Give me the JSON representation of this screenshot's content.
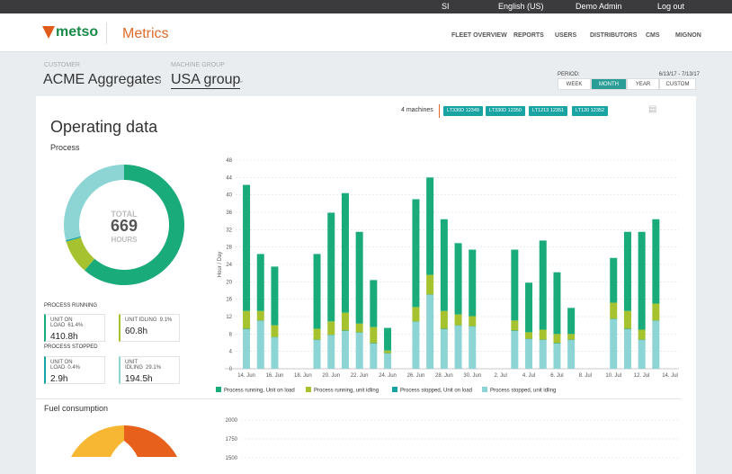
{
  "topbar": {
    "items": [
      "SI",
      "English (US)",
      "Demo Admin",
      "Log out"
    ]
  },
  "nav": {
    "logo": "metso",
    "app": "Metrics",
    "links": [
      "FLEET OVERVIEW",
      "REPORTS",
      "USERS",
      "DISTRIBUTORS",
      "CMS",
      "MIGNON"
    ]
  },
  "breadcrumb": {
    "customer_label": "CUSTOMER",
    "customer": "ACME Aggregates",
    "group_label": "MACHINE GROUP",
    "group": "USA group"
  },
  "period": {
    "label": "PERIOD:",
    "range": "6/13/17 - 7/13/17",
    "options": [
      "WEEK",
      "MONTH",
      "YEAR",
      "CUSTOM"
    ],
    "selected": 1
  },
  "machines": {
    "count": "4 machines",
    "list": [
      "LT330D 12349",
      "LT330D 12350",
      "LT1213 12351",
      "LT120 12352"
    ]
  },
  "section_title": "Operating data",
  "process": {
    "title": "Process",
    "donut": {
      "type": "pie",
      "center_label": "TOTAL",
      "center_value": "669",
      "center_unit": "HOURS",
      "categories": [
        "UNIT ON LOAD",
        "UNIT IDLING",
        "UNIT ON LOAD",
        "UNIT IDLING"
      ],
      "values": [
        61.4,
        9.1,
        0.4,
        29.1
      ],
      "value_labels": [
        "61.4%",
        "9.1%",
        "0.4%",
        "29.1%"
      ],
      "hours": [
        "410.8h",
        "60.8h",
        "2.9h",
        "194.5h"
      ],
      "colors": [
        "#1aab7b",
        "#a6c22e",
        "#17a3a3",
        "#8dd4d4"
      ]
    },
    "groups": [
      "PROCESS RUNNING",
      "PROCESS STOPPED"
    ],
    "bars": {
      "type": "bar",
      "stacked": true,
      "y_label": "Hour / Day",
      "categories": [
        null,
        "14. Jun",
        null,
        "16. Jun",
        null,
        "18. Jun",
        null,
        "20. Jun",
        null,
        "22. Jun",
        null,
        "24. Jun",
        null,
        "26. Jun",
        null,
        "28. Jun",
        null,
        "30. Jun",
        null,
        "2. Jul",
        null,
        "4. Jul",
        null,
        "6. Jul",
        null,
        "8. Jul",
        null,
        "10. Jul",
        null,
        "12. Jul",
        null,
        "14. Jul"
      ],
      "ylim": [
        0,
        48
      ],
      "yticks": [
        0,
        4,
        8,
        12,
        16,
        20,
        24,
        28,
        32,
        36,
        40,
        44,
        48
      ],
      "grid": true,
      "series": [
        {
          "name": "Process running, Unit on load",
          "color": "#1aab7b",
          "values": [
            null,
            29,
            13.1,
            13.5,
            null,
            null,
            17.2,
            25,
            27.5,
            21.1,
            10.8,
            5.2,
            null,
            24.8,
            22.4,
            21.1,
            16.4,
            15.3,
            null,
            null,
            16.3,
            11.4,
            20.5,
            14.2,
            6.0,
            null,
            null,
            10.3,
            18.2,
            22.5,
            19.4,
            null
          ]
        },
        {
          "name": "Process running, unit idling",
          "color": "#a6c22e",
          "values": [
            null,
            4.1,
            2.2,
            2.7,
            null,
            null,
            2.5,
            3.1,
            4.1,
            2,
            3.7,
            0.6,
            null,
            3.3,
            4.5,
            4.1,
            2.5,
            2.3,
            null,
            null,
            2.3,
            1.5,
            2.3,
            2.1,
            1.3,
            null,
            null,
            3.7,
            4.1,
            2.3,
            3.9,
            null
          ]
        },
        {
          "name": "Process stopped, Unit on load",
          "color": "#17a3a3",
          "values": [
            null,
            0.1,
            0.1,
            0.1,
            null,
            null,
            0.1,
            0.1,
            0.1,
            0.1,
            0.1,
            0.1,
            null,
            0.1,
            0.1,
            0.1,
            0.1,
            0.1,
            null,
            null,
            0.1,
            0.1,
            0.1,
            0.1,
            0.1,
            null,
            null,
            0.1,
            0.1,
            0.1,
            0.1,
            null
          ]
        },
        {
          "name": "Process stopped, unit idling",
          "color": "#8dd4d4",
          "values": [
            null,
            9.1,
            11,
            7.2,
            null,
            null,
            6.6,
            7.7,
            8.7,
            8.3,
            5.8,
            3.5,
            null,
            10.8,
            17,
            9.1,
            9.9,
            9.7,
            null,
            null,
            8.7,
            6.8,
            6.6,
            5.8,
            6.6,
            null,
            null,
            11.4,
            9.1,
            6.6,
            11,
            null
          ]
        }
      ]
    }
  },
  "fuel": {
    "title": "Fuel consumption",
    "ylim": [
      0,
      2000
    ],
    "yticks": [
      2000,
      1750,
      1500
    ]
  }
}
